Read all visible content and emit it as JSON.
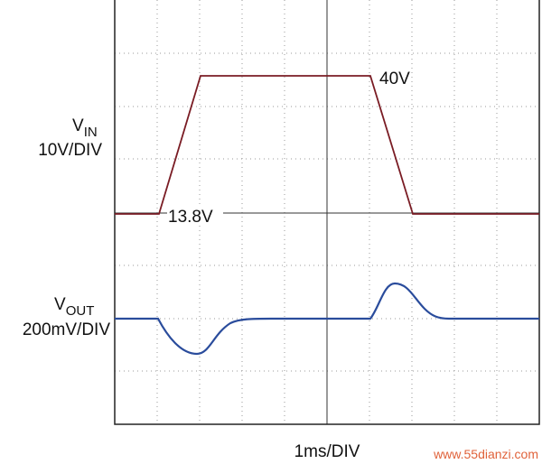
{
  "channels": [
    {
      "symbol": "V",
      "subscript": "IN",
      "scale": "10V/DIV"
    },
    {
      "symbol": "V",
      "subscript": "OUT",
      "scale": "200mV/DIV"
    }
  ],
  "annotations": {
    "high": "40V",
    "low": "13.8V"
  },
  "timebase": "1ms/DIV",
  "watermark": "www.55dianzi.com"
}
